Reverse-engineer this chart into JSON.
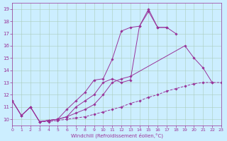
{
  "xlabel": "Windchill (Refroidissement éolien,°C)",
  "background_color": "#cceeff",
  "line_color": "#993399",
  "grid_color": "#aaccbb",
  "xlim": [
    0,
    23
  ],
  "ylim": [
    9.5,
    19.5
  ],
  "yticks": [
    10,
    11,
    12,
    13,
    14,
    15,
    16,
    17,
    18,
    19
  ],
  "xticks": [
    0,
    1,
    2,
    3,
    4,
    5,
    6,
    7,
    8,
    9,
    10,
    11,
    12,
    13,
    14,
    15,
    16,
    17,
    18,
    19,
    20,
    21,
    22,
    23
  ],
  "series": [
    {
      "x": [
        0,
        1,
        2,
        3,
        4,
        5,
        6,
        7,
        8,
        9,
        10,
        11,
        12,
        13,
        14,
        15,
        16,
        17
      ],
      "y": [
        11.5,
        10.3,
        11.0,
        9.8,
        9.9,
        10.0,
        10.8,
        11.5,
        12.2,
        13.2,
        13.3,
        14.9,
        17.2,
        17.5,
        17.6,
        19.0,
        17.5,
        17.5
      ],
      "style": "solid"
    },
    {
      "x": [
        0,
        1,
        2,
        3,
        4,
        5,
        6,
        7,
        8,
        9,
        10,
        11,
        12,
        13,
        14,
        15,
        16,
        17,
        18
      ],
      "y": [
        11.5,
        10.3,
        11.0,
        9.8,
        9.9,
        10.0,
        10.2,
        11.0,
        11.5,
        12.0,
        13.0,
        13.3,
        13.0,
        13.2,
        17.6,
        18.8,
        17.5,
        17.5,
        17.0
      ],
      "style": "solid"
    },
    {
      "x": [
        0,
        1,
        2,
        3,
        4,
        5,
        6,
        7,
        8,
        9,
        10,
        11,
        12,
        13,
        19,
        20,
        21,
        22
      ],
      "y": [
        11.5,
        10.3,
        11.0,
        9.8,
        9.9,
        10.0,
        10.2,
        10.5,
        10.8,
        11.2,
        12.0,
        13.0,
        13.3,
        13.5,
        16.0,
        15.0,
        14.2,
        13.0
      ],
      "style": "solid"
    },
    {
      "x": [
        3,
        4,
        5,
        6,
        7,
        8,
        9,
        10,
        11,
        12,
        13,
        14,
        15,
        16,
        17,
        18,
        19,
        20,
        21,
        22,
        23
      ],
      "y": [
        9.8,
        9.8,
        9.9,
        10.0,
        10.1,
        10.2,
        10.4,
        10.6,
        10.8,
        11.0,
        11.3,
        11.5,
        11.8,
        12.0,
        12.3,
        12.5,
        12.7,
        12.9,
        13.0,
        13.0,
        13.0
      ],
      "style": "dashed"
    }
  ]
}
